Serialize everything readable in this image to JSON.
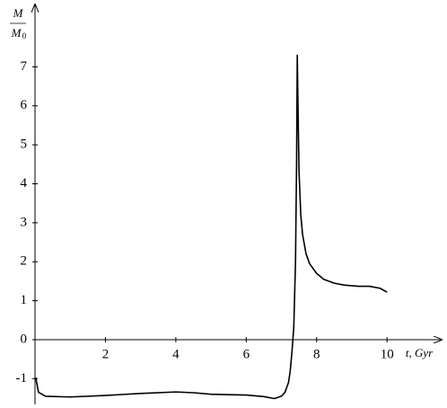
{
  "chart_data": {
    "type": "line",
    "xlabel": "t, Gyr",
    "ylabel": {
      "numerator": "M",
      "denominator": "M",
      "denominator_subscript": "0"
    },
    "xlim": [
      0,
      11.55
    ],
    "ylim": [
      -1.66,
      8.6
    ],
    "xticks": [
      2,
      4,
      6,
      8,
      10
    ],
    "yticks": [
      -1,
      0,
      1,
      2,
      3,
      4,
      5,
      6,
      7
    ],
    "grid": false,
    "series": [
      {
        "color": "#000000",
        "x": [
          0.02,
          0.1,
          0.3,
          1,
          2,
          3,
          4,
          4.5,
          5,
          6,
          6.5,
          6.8,
          7.0,
          7.1,
          7.2,
          7.25,
          7.3,
          7.35,
          7.4,
          7.43,
          7.45,
          7.47,
          7.5,
          7.55,
          7.6,
          7.7,
          7.8,
          8.0,
          8.2,
          8.5,
          8.8,
          9.2,
          9.5,
          9.8,
          10.0
        ],
        "values": [
          -0.97,
          -1.35,
          -1.45,
          -1.47,
          -1.43,
          -1.38,
          -1.34,
          -1.36,
          -1.4,
          -1.42,
          -1.46,
          -1.51,
          -1.45,
          -1.35,
          -1.1,
          -0.8,
          -0.3,
          0.3,
          2.0,
          4.5,
          7.3,
          6.0,
          4.3,
          3.2,
          2.7,
          2.2,
          1.95,
          1.7,
          1.55,
          1.45,
          1.4,
          1.37,
          1.37,
          1.32,
          1.22
        ]
      }
    ]
  }
}
